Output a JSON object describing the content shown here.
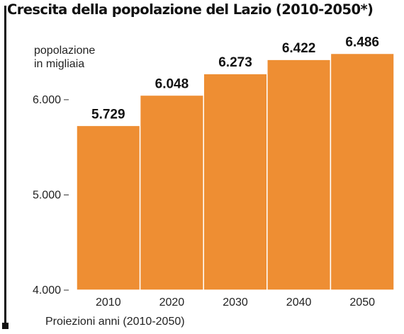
{
  "chart_data": {
    "type": "bar",
    "title": "Crescita della popolazione del Lazio (2010-2050*)",
    "ylabel_lines": [
      "popolazione",
      "in migliaia"
    ],
    "footnote": "Proiezioni anni (2010-2050)",
    "categories": [
      "2010",
      "2020",
      "2030",
      "2040",
      "2050"
    ],
    "values": [
      5729,
      6048,
      6273,
      6422,
      6486
    ],
    "value_labels": [
      "5.729",
      "6.048",
      "6.273",
      "6.422",
      "6.486"
    ],
    "ylim": [
      4000,
      6750
    ],
    "yticks": [
      4000,
      5000,
      6000
    ],
    "ytick_labels": [
      "4.000",
      "5.000",
      "6.000"
    ],
    "grid": false,
    "colors": {
      "bar": "#EE8E33",
      "bar_edge": "#FFFFFF",
      "tick": "#333333"
    }
  }
}
